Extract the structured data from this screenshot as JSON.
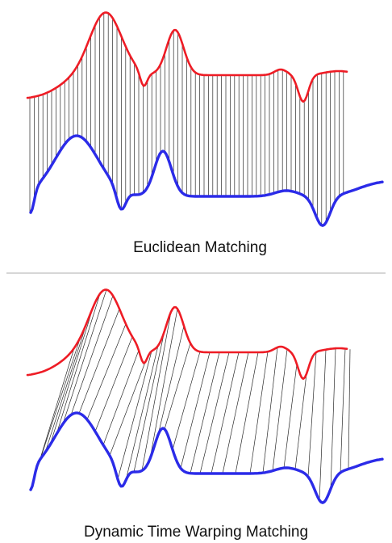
{
  "colors": {
    "top_series": "#ee1c25",
    "bottom_series": "#2b2be8",
    "connector": "#2a2a2a",
    "divider": "#c8c8c8"
  },
  "panels": [
    {
      "id": "euclidean",
      "caption": "Euclidean Matching",
      "matching": "euclidean"
    },
    {
      "id": "dtw",
      "caption": "Dynamic Time Warping Matching",
      "matching": "warping"
    }
  ]
}
